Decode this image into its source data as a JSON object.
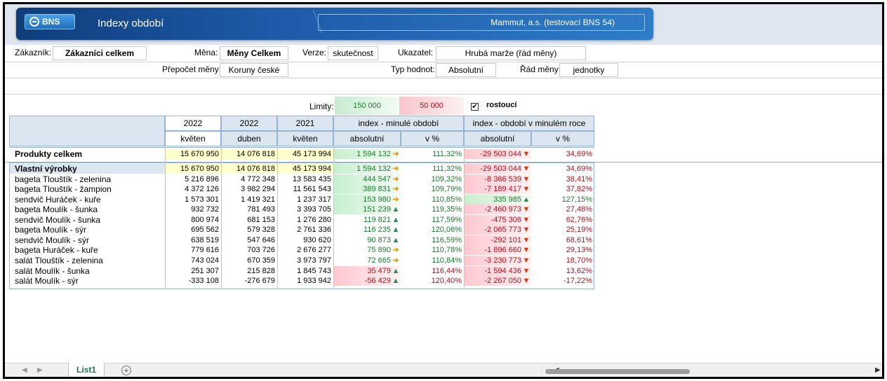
{
  "banner": {
    "logo": "BNS",
    "title": "Indexy období",
    "company": "Mammut, a.s. (testovací BNS 54)"
  },
  "filters": {
    "zakaznik_label": "Zákazník:",
    "zakaznik_value": "Zákazníci celkem",
    "mena_label": "Měna:",
    "mena_value": "Měny Celkem",
    "verze_label": "Verze:",
    "verze_value": "skutečnost",
    "ukazatel_label": "Ukazatel:",
    "ukazatel_value": "Hrubá marže (řád měny)",
    "prepocet_label": "Přepočet měny:",
    "prepocet_value": "Koruny české",
    "typ_label": "Typ hodnot:",
    "typ_value": "Absolutní",
    "rad_label": "Řád měny:",
    "rad_value": "jednotky"
  },
  "limits": {
    "label": "Limity:",
    "green": "150 000",
    "red": "50 000",
    "check_mark": "✔",
    "rostouci": "rostoucí"
  },
  "headers": {
    "c1_year": "2022",
    "c1_month": "květen",
    "c2_year": "2022",
    "c2_month": "duben",
    "c3_year": "2021",
    "c3_month": "květen",
    "idx1": "index - minulé období",
    "idx2": "index - období v minulém roce",
    "abs": "absolutní",
    "pct": "v %"
  },
  "colors": {
    "green_bg": "#c6efce",
    "red_bg": "#ffc7ce",
    "yellow_bg": "#ffffcc",
    "green_text": "#1a7a2e",
    "red_text": "#b01020",
    "arrow_up": "#2e8b57",
    "arrow_side": "#e0a020",
    "arrow_down": "#d04010"
  },
  "total": {
    "name": "Produkty celkem",
    "v1": "15 670 950",
    "v2": "14 076 818",
    "v3": "45 173 994",
    "a1": "1 594 132",
    "p1": "111,32%",
    "a2": "-29 503 044",
    "p2": "34,69%",
    "ar1": "side",
    "ar2": "down",
    "g1": "green",
    "g2": "red"
  },
  "rows": [
    {
      "name": "Vlastní výrobky",
      "v1": "15 670 950",
      "v2": "14 076 818",
      "v3": "45 173 994",
      "a1": "1 594 132",
      "p1": "111,32%",
      "a2": "-29 503 044",
      "p2": "34,69%",
      "ar1": "side",
      "ar2": "down",
      "g1": "green",
      "g2": "red",
      "bold": true
    },
    {
      "name": "bageta Tlouštík - zelenina",
      "v1": "5 216 896",
      "v2": "4 772 348",
      "v3": "13 583 435",
      "a1": "444 547",
      "p1": "109,32%",
      "a2": "-8 366 539",
      "p2": "38,41%",
      "ar1": "side",
      "ar2": "down",
      "g1": "green",
      "g2": "red"
    },
    {
      "name": "bageta Tlouštík - žampion",
      "v1": "4 372 126",
      "v2": "3 982 294",
      "v3": "11 561 543",
      "a1": "389 831",
      "p1": "109,79%",
      "a2": "-7 189 417",
      "p2": "37,82%",
      "ar1": "side",
      "ar2": "down",
      "g1": "green",
      "g2": "red"
    },
    {
      "name": "sendvič Huráček - kuře",
      "v1": "1 573 301",
      "v2": "1 419 321",
      "v3": "1 237 317",
      "a1": "153 980",
      "p1": "110,85%",
      "a2": "335 985",
      "p2": "127,15%",
      "ar1": "side",
      "ar2": "up",
      "g1": "green",
      "g2": "green"
    },
    {
      "name": "bageta Moulík - šunka",
      "v1": "932 732",
      "v2": "781 493",
      "v3": "3 393 705",
      "a1": "151 239",
      "p1": "119,35%",
      "a2": "-2 460 973",
      "p2": "27,48%",
      "ar1": "up",
      "ar2": "down",
      "g1": "green",
      "g2": "red"
    },
    {
      "name": "sendvič Moulík - šunka",
      "v1": "800 974",
      "v2": "681 153",
      "v3": "1 276 280",
      "a1": "119 821",
      "p1": "117,59%",
      "a2": "-475 306",
      "p2": "62,76%",
      "ar1": "up",
      "ar2": "down",
      "g1": "none",
      "g2": "red"
    },
    {
      "name": "bageta Moulík - sýr",
      "v1": "695 562",
      "v2": "579 328",
      "v3": "2 761 336",
      "a1": "116 235",
      "p1": "120,06%",
      "a2": "-2 065 773",
      "p2": "25,19%",
      "ar1": "up",
      "ar2": "down",
      "g1": "none",
      "g2": "red"
    },
    {
      "name": "sendvič Moulík - sýr",
      "v1": "638 519",
      "v2": "547 646",
      "v3": "930 620",
      "a1": "90 873",
      "p1": "116,59%",
      "a2": "-292 101",
      "p2": "68,61%",
      "ar1": "up",
      "ar2": "down",
      "g1": "none",
      "g2": "red"
    },
    {
      "name": "bageta Huráček - kuře",
      "v1": "779 616",
      "v2": "703 726",
      "v3": "2 676 277",
      "a1": "75 890",
      "p1": "110,78%",
      "a2": "-1 896 660",
      "p2": "29,13%",
      "ar1": "side",
      "ar2": "down",
      "g1": "none",
      "g2": "red"
    },
    {
      "name": "salát Tlouštík - zelenina",
      "v1": "743 024",
      "v2": "670 359",
      "v3": "3 973 797",
      "a1": "72 665",
      "p1": "110,84%",
      "a2": "-3 230 773",
      "p2": "18,70%",
      "ar1": "side",
      "ar2": "down",
      "g1": "none",
      "g2": "red"
    },
    {
      "name": "salát Moulík - šunka",
      "v1": "251 307",
      "v2": "215 828",
      "v3": "1 845 743",
      "a1": "35 479",
      "p1": "116,44%",
      "a2": "-1 594 436",
      "p2": "13,62%",
      "ar1": "up",
      "ar2": "down",
      "g1": "red",
      "g2": "red"
    },
    {
      "name": "salát Moulík - sýr",
      "v1": "-333 108",
      "v2": "-276 679",
      "v3": "1 933 942",
      "a1": "-56 429",
      "p1": "120,40%",
      "a2": "-2 267 050",
      "p2": "-17,22%",
      "ar1": "up",
      "ar2": "down",
      "g1": "red",
      "g2": "red"
    }
  ],
  "sheet": {
    "tab": "List1",
    "plus": "+",
    "prev": "◀",
    "next": "▶",
    "right_arrow": "▶",
    "left_arrow": "◀",
    "dots": "⋮"
  }
}
